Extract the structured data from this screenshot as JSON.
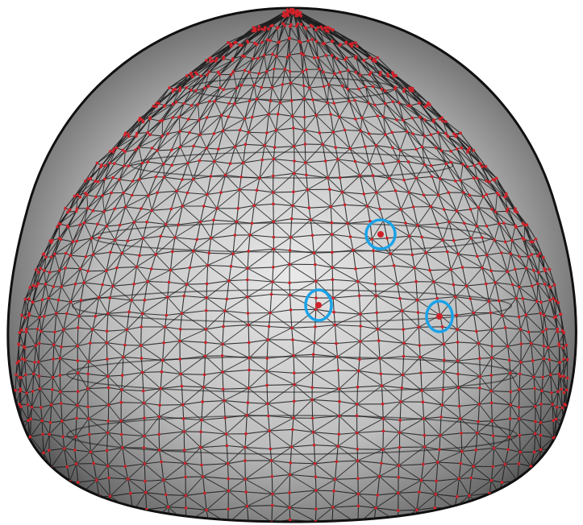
{
  "figure": {
    "background_color": "#ffffff",
    "mesh_fill_inner": "#e6e6e6",
    "mesh_fill_outer": "#5c5c5c",
    "edge_color": "#1a1a1a",
    "vertex_color": "#d0222a",
    "marker_color": "#1aa3e8",
    "marked_vertex_count": 3
  }
}
